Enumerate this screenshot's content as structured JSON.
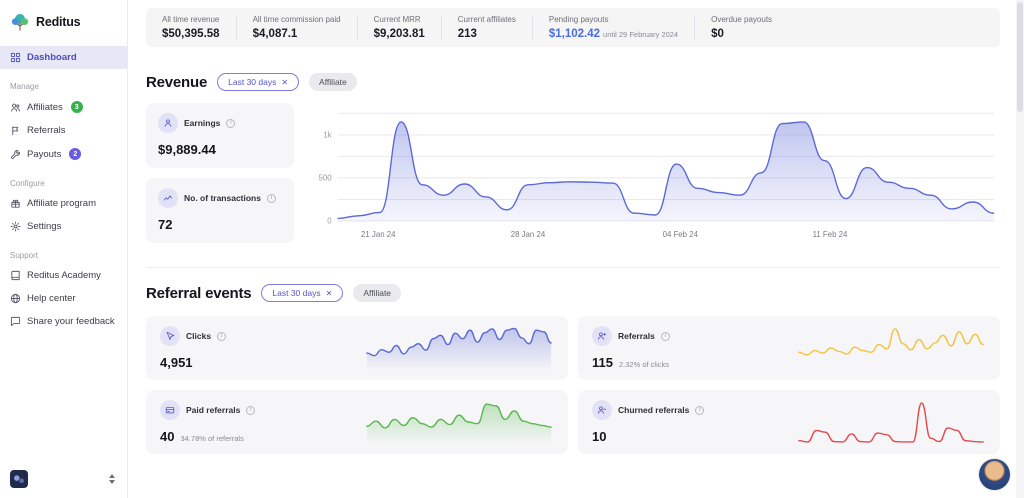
{
  "icons": {
    "close": "✕"
  },
  "colors": {
    "accent": "#5458cf",
    "active_item_bg": "#e7e7f6",
    "badge_green": "#37b24d",
    "badge_purple": "#6a5ae0",
    "pending_blue": "#4a6bdd"
  },
  "sidebar": {
    "logo_text": "Reditus",
    "dashboard_label": "Dashboard",
    "sections": [
      {
        "title": "Manage",
        "items": [
          {
            "label": "Affiliates",
            "badge": "3"
          },
          {
            "label": "Referrals"
          },
          {
            "label": "Payouts",
            "badge": "2"
          }
        ]
      },
      {
        "title": "Configure",
        "items": [
          {
            "label": "Affiliate program"
          },
          {
            "label": "Settings"
          }
        ]
      },
      {
        "title": "Support",
        "items": [
          {
            "label": "Reditus Academy"
          },
          {
            "label": "Help center"
          },
          {
            "label": "Share your feedback"
          }
        ]
      }
    ]
  },
  "stats": [
    {
      "label": "All time revenue",
      "value": "$50,395.58"
    },
    {
      "label": "All time commission paid",
      "value": "$4,087.1"
    },
    {
      "label": "Current MRR",
      "value": "$9,203.81"
    },
    {
      "label": "Current affiliates",
      "value": "213"
    },
    {
      "label": "Pending payouts",
      "value": "$1,102.42",
      "suffix": "until 29 February 2024"
    },
    {
      "label": "Overdue payouts",
      "value": "$0"
    }
  ],
  "revenue": {
    "title": "Revenue",
    "filter_label": "Last 30 days",
    "affiliate_label": "Affiliate",
    "cards": [
      {
        "label": "Earnings",
        "value": "$9,889.44"
      },
      {
        "label": "No. of transactions",
        "value": "72"
      }
    ]
  },
  "referral_events": {
    "title": "Referral events",
    "filter_label": "Last 30 days",
    "affiliate_label": "Affiliate",
    "cards": [
      {
        "label": "Clicks",
        "value": "4,951",
        "sub": ""
      },
      {
        "label": "Referrals",
        "value": "115",
        "sub": "2.32% of clicks"
      },
      {
        "label": "Paid referrals",
        "value": "40",
        "sub": "34.78% of referrals"
      },
      {
        "label": "Churned referrals",
        "value": "10",
        "sub": ""
      }
    ]
  },
  "chart_data": [
    {
      "id": "revenue",
      "type": "area",
      "title": "Revenue — last 30 days",
      "line_color": "#5b68d6",
      "ylim": [
        0,
        1300
      ],
      "grid_values": [
        0,
        250,
        500,
        750,
        1000,
        1250
      ],
      "y_ticks": [
        {
          "v": 0,
          "label": "0"
        },
        {
          "v": 500,
          "label": "500"
        },
        {
          "v": 1000,
          "label": "1k"
        }
      ],
      "x_ticks": [
        {
          "pos": 0.062,
          "label": "21 Jan 24"
        },
        {
          "pos": 0.29,
          "label": "28 Jan 24"
        },
        {
          "pos": 0.522,
          "label": "04 Feb 24"
        },
        {
          "pos": 0.75,
          "label": "11 Feb 24"
        }
      ],
      "values": [
        30,
        60,
        100,
        1150,
        420,
        300,
        430,
        280,
        130,
        420,
        445,
        455,
        450,
        440,
        90,
        70,
        660,
        380,
        330,
        300,
        560,
        1130,
        1150,
        700,
        260,
        620,
        450,
        380,
        300,
        140,
        220,
        90
      ]
    },
    {
      "id": "clicks",
      "type": "sparkline",
      "title": "Clicks",
      "color": "#5b68d6",
      "fill": true,
      "ymax": 100,
      "values": [
        38,
        32,
        46,
        40,
        56,
        36,
        52,
        60,
        45,
        72,
        80,
        58,
        85,
        72,
        92,
        64,
        86,
        95,
        70,
        92,
        96,
        74,
        60,
        92,
        88,
        62
      ]
    },
    {
      "id": "referrals",
      "type": "sparkline",
      "title": "Referrals",
      "color": "#f2c23e",
      "fill": false,
      "ymax": 100,
      "values": [
        40,
        34,
        44,
        38,
        50,
        42,
        36,
        52,
        44,
        40,
        58,
        48,
        95,
        60,
        46,
        70,
        48,
        62,
        80,
        55,
        88,
        60,
        82,
        58
      ]
    },
    {
      "id": "paid",
      "type": "sparkline",
      "title": "Paid referrals",
      "color": "#57b94c",
      "fill": true,
      "ymax": 100,
      "values": [
        40,
        52,
        36,
        56,
        42,
        60,
        46,
        38,
        56,
        44,
        66,
        50,
        46,
        92,
        88,
        56,
        76,
        52,
        46,
        42,
        38
      ]
    },
    {
      "id": "churned",
      "type": "sparkline",
      "title": "Churned referrals",
      "color": "#e5484d",
      "fill": false,
      "ymax": 100,
      "values": [
        6,
        3,
        30,
        26,
        4,
        3,
        22,
        4,
        3,
        24,
        20,
        4,
        3,
        3,
        95,
        12,
        4,
        36,
        30,
        6,
        4,
        3
      ]
    }
  ]
}
